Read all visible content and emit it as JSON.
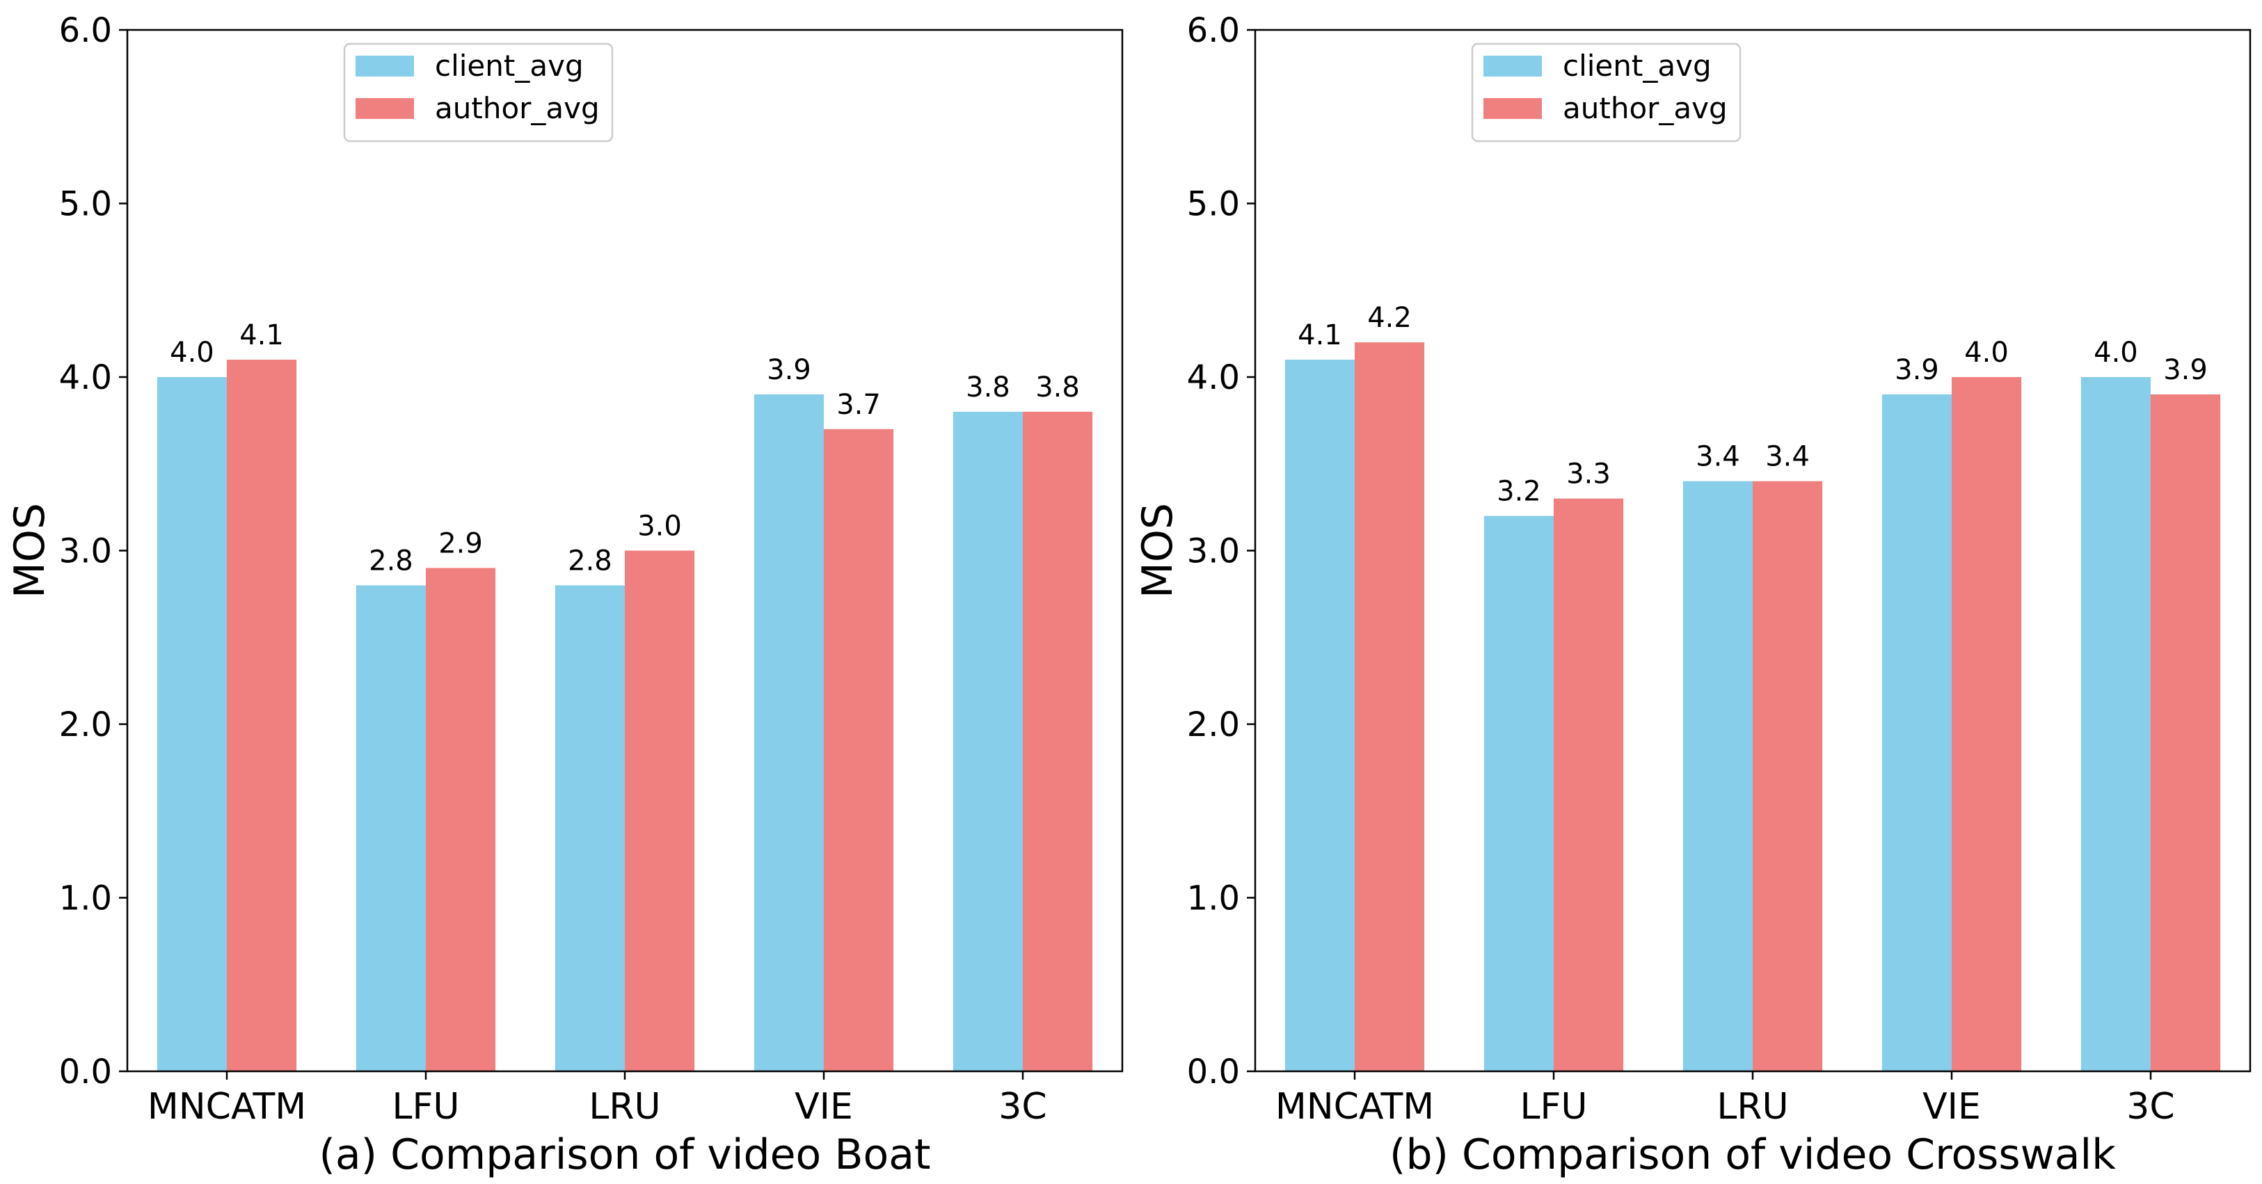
{
  "colors": {
    "client_avg": "#87CEEB",
    "author_avg": "#F08080"
  },
  "chart_data": [
    {
      "type": "bar",
      "caption": "(a) Comparison of video Boat",
      "ylabel": "MOS",
      "xlabel": "",
      "ylim": [
        0,
        6
      ],
      "yticks": [
        0,
        1,
        2,
        3,
        4,
        5,
        6
      ],
      "ytick_labels": [
        "0.0",
        "1.0",
        "2.0",
        "3.0",
        "4.0",
        "5.0",
        "6.0"
      ],
      "categories": [
        "MNCATM",
        "LFU",
        "LRU",
        "VIE",
        "3C"
      ],
      "legend_position": "upper-center",
      "series": [
        {
          "name": "client_avg",
          "values": [
            4.0,
            2.8,
            2.8,
            3.9,
            3.8
          ],
          "labels": [
            "4.0",
            "2.8",
            "2.8",
            "3.9",
            "3.8"
          ]
        },
        {
          "name": "author_avg",
          "values": [
            4.1,
            2.9,
            3.0,
            3.7,
            3.8
          ],
          "labels": [
            "4.1",
            "2.9",
            "3.0",
            "3.7",
            "3.8"
          ]
        }
      ]
    },
    {
      "type": "bar",
      "caption": "(b) Comparison of video Crosswalk",
      "ylabel": "MOS",
      "xlabel": "",
      "ylim": [
        0,
        6
      ],
      "yticks": [
        0,
        1,
        2,
        3,
        4,
        5,
        6
      ],
      "ytick_labels": [
        "0.0",
        "1.0",
        "2.0",
        "3.0",
        "4.0",
        "5.0",
        "6.0"
      ],
      "categories": [
        "MNCATM",
        "LFU",
        "LRU",
        "VIE",
        "3C"
      ],
      "legend_position": "upper-center",
      "series": [
        {
          "name": "client_avg",
          "values": [
            4.1,
            3.2,
            3.4,
            3.9,
            4.0
          ],
          "labels": [
            "4.1",
            "3.2",
            "3.4",
            "3.9",
            "4.0"
          ]
        },
        {
          "name": "author_avg",
          "values": [
            4.2,
            3.3,
            3.4,
            4.0,
            3.9
          ],
          "labels": [
            "4.2",
            "3.3",
            "3.4",
            "4.0",
            "3.9"
          ]
        }
      ]
    }
  ]
}
